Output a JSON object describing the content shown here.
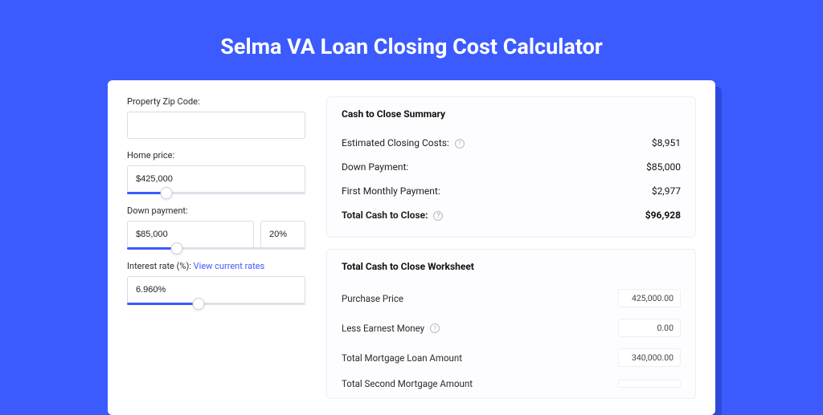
{
  "pageTitle": "Selma VA Loan Closing Cost Calculator",
  "colors": {
    "accent": "#3B5BFF",
    "pageBg": "#3B5BFF",
    "panelBg": "#ffffff"
  },
  "form": {
    "zip": {
      "label": "Property Zip Code:",
      "value": ""
    },
    "homePrice": {
      "label": "Home price:",
      "value": "$425,000",
      "sliderPct": 22
    },
    "downPayment": {
      "label": "Down payment:",
      "value": "$85,000",
      "percent": "20%",
      "sliderPct": 28
    },
    "interest": {
      "label": "Interest rate (%):",
      "linkText": "View current rates",
      "value": "6.960%",
      "sliderPct": 40
    }
  },
  "summary": {
    "title": "Cash to Close Summary",
    "rows": [
      {
        "label": "Estimated Closing Costs:",
        "help": true,
        "value": "$8,951"
      },
      {
        "label": "Down Payment:",
        "help": false,
        "value": "$85,000"
      },
      {
        "label": "First Monthly Payment:",
        "help": false,
        "value": "$2,977"
      }
    ],
    "total": {
      "label": "Total Cash to Close:",
      "help": true,
      "value": "$96,928"
    }
  },
  "worksheet": {
    "title": "Total Cash to Close Worksheet",
    "rows": [
      {
        "label": "Purchase Price",
        "help": false,
        "value": "425,000.00"
      },
      {
        "label": "Less Earnest Money",
        "help": true,
        "value": "0.00"
      },
      {
        "label": "Total Mortgage Loan Amount",
        "help": false,
        "value": "340,000.00"
      },
      {
        "label": "Total Second Mortgage Amount",
        "help": false,
        "value": ""
      }
    ]
  }
}
